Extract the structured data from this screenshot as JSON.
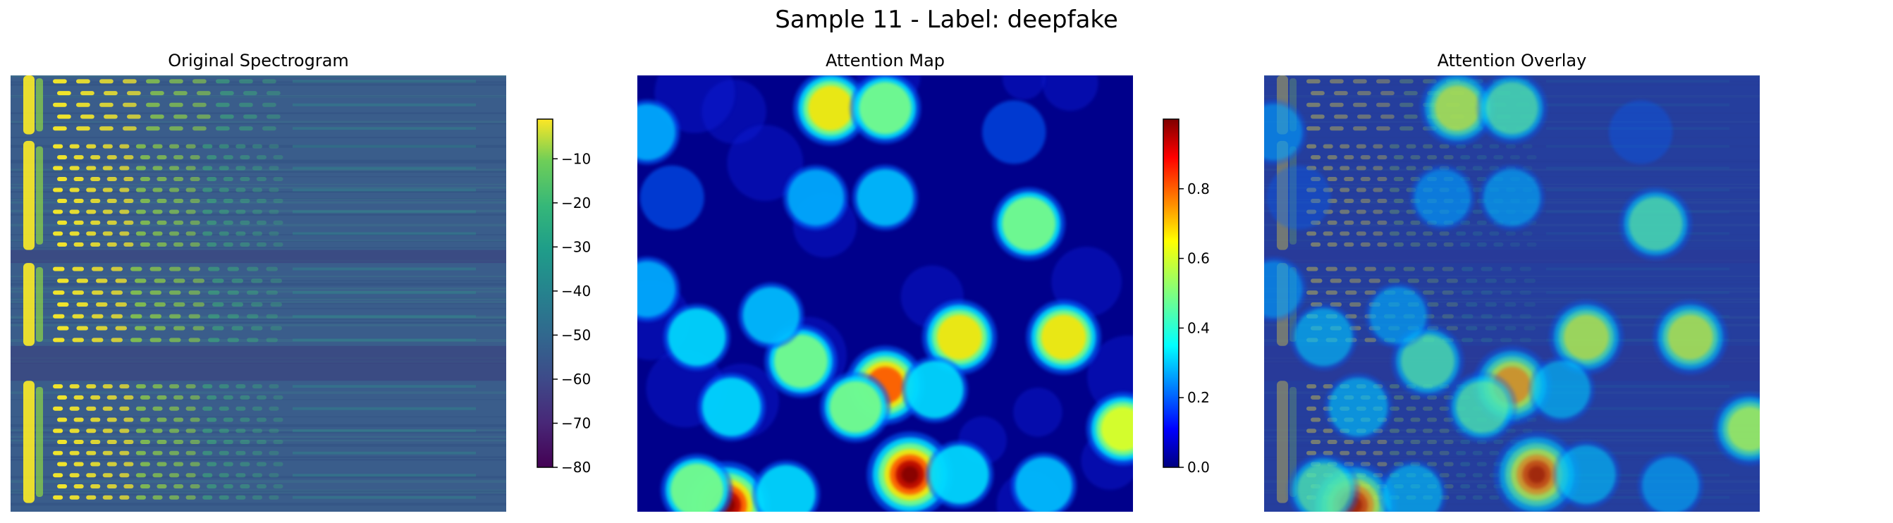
{
  "figure": {
    "title": "Sample 11 - Label: deepfake"
  },
  "chart_data": [
    {
      "type": "heatmap",
      "title": "Original Spectrogram",
      "colormap": "viridis",
      "axes": "off",
      "colorbar": {
        "ticks": [
          -10,
          -20,
          -30,
          -40,
          -50,
          -60,
          -70,
          -80
        ],
        "range": [
          -80,
          -1
        ]
      },
      "harmonic_stacks": [
        {
          "y_top": 0.0,
          "y_bottom": 0.135,
          "bars": 10
        },
        {
          "y_top": 0.15,
          "y_bottom": 0.4,
          "bars": 14
        },
        {
          "y_top": 0.43,
          "y_bottom": 0.62,
          "bars": 12
        },
        {
          "y_top": 0.7,
          "y_bottom": 0.98,
          "bars": 14
        }
      ]
    },
    {
      "type": "heatmap",
      "title": "Attention Map",
      "colormap": "jet",
      "axes": "off",
      "colorbar": {
        "ticks": [
          0.0,
          0.2,
          0.4,
          0.6,
          0.8
        ],
        "range": [
          0,
          1
        ]
      },
      "hotspots": [
        {
          "x": 0.39,
          "y": 0.075,
          "intensity": 0.55
        },
        {
          "x": 0.5,
          "y": 0.075,
          "intensity": 0.42
        },
        {
          "x": 0.36,
          "y": 0.28,
          "intensity": 0.2
        },
        {
          "x": 0.5,
          "y": 0.28,
          "intensity": 0.22
        },
        {
          "x": 0.07,
          "y": 0.28,
          "intensity": 0.18
        },
        {
          "x": 0.79,
          "y": 0.34,
          "intensity": 0.48
        },
        {
          "x": 0.02,
          "y": 0.13,
          "intensity": 0.2
        },
        {
          "x": 0.76,
          "y": 0.13,
          "intensity": 0.16
        },
        {
          "x": 0.02,
          "y": 0.49,
          "intensity": 0.2
        },
        {
          "x": 0.33,
          "y": 0.655,
          "intensity": 0.48
        },
        {
          "x": 0.65,
          "y": 0.6,
          "intensity": 0.55
        },
        {
          "x": 0.86,
          "y": 0.6,
          "intensity": 0.55
        },
        {
          "x": 0.5,
          "y": 0.71,
          "intensity": 0.7
        },
        {
          "x": 0.44,
          "y": 0.76,
          "intensity": 0.4
        },
        {
          "x": 0.19,
          "y": 0.76,
          "intensity": 0.3
        },
        {
          "x": 0.12,
          "y": 0.6,
          "intensity": 0.26
        },
        {
          "x": 0.98,
          "y": 0.81,
          "intensity": 0.5
        },
        {
          "x": 0.55,
          "y": 0.915,
          "intensity": 0.95
        },
        {
          "x": 0.65,
          "y": 0.915,
          "intensity": 0.3
        },
        {
          "x": 0.18,
          "y": 0.985,
          "intensity": 1.0
        },
        {
          "x": 0.12,
          "y": 0.95,
          "intensity": 0.45
        },
        {
          "x": 0.3,
          "y": 0.96,
          "intensity": 0.3
        },
        {
          "x": 0.82,
          "y": 0.94,
          "intensity": 0.22
        },
        {
          "x": 0.27,
          "y": 0.55,
          "intensity": 0.22
        },
        {
          "x": 0.6,
          "y": 0.72,
          "intensity": 0.25
        }
      ]
    },
    {
      "type": "heatmap",
      "title": "Attention Overlay",
      "colormap": "viridis + jet overlay",
      "axes": "off"
    }
  ]
}
